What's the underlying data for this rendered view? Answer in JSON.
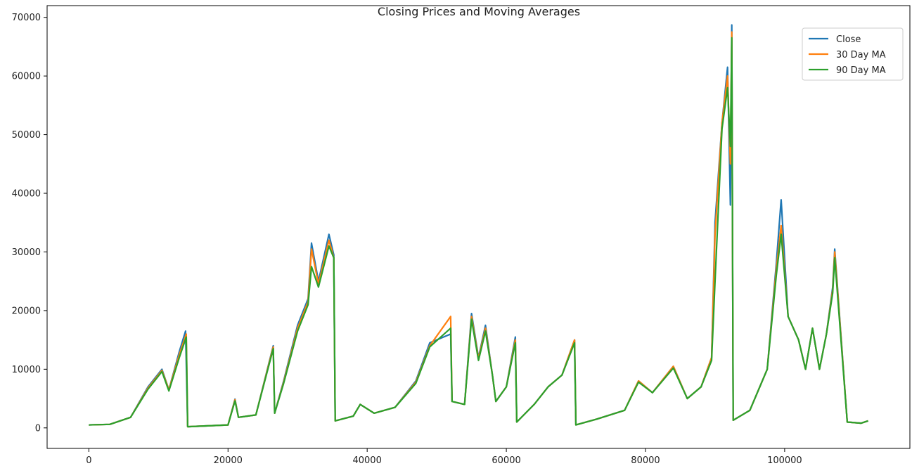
{
  "chart_data": {
    "type": "line",
    "title": "Closing Prices and Moving Averages",
    "xlabel": "",
    "ylabel": "",
    "xlim": [
      -6000,
      118000
    ],
    "ylim": [
      -3500,
      72000
    ],
    "x_ticks": [
      0,
      20000,
      40000,
      60000,
      80000,
      100000
    ],
    "y_ticks": [
      0,
      10000,
      20000,
      30000,
      40000,
      50000,
      60000,
      70000
    ],
    "grid": false,
    "legend_position": "top-right",
    "series": [
      {
        "name": "Close",
        "color": "#1f77b4",
        "x": [
          0,
          3000,
          6000,
          8500,
          10500,
          11500,
          13000,
          13900,
          14200,
          20000,
          21000,
          21500,
          24000,
          26500,
          26700,
          28000,
          30000,
          31500,
          32000,
          33000,
          34500,
          35200,
          35400,
          38000,
          39000,
          41000,
          44000,
          47000,
          49000,
          52000,
          52200,
          54000,
          55000,
          56000,
          57000,
          58000,
          58500,
          60000,
          61300,
          61500,
          64000,
          66000,
          68000,
          69800,
          70000,
          73000,
          77000,
          79000,
          81000,
          84000,
          86000,
          88000,
          89500,
          90000,
          91000,
          91800,
          92200,
          92400,
          92600,
          95000,
          97500,
          98800,
          99500,
          100500,
          102000,
          103000,
          104000,
          105000,
          106000,
          106900,
          107200,
          109000,
          111000,
          112000
        ],
        "y": [
          500,
          600,
          1800,
          7000,
          10000,
          6500,
          13000,
          16500,
          200,
          500,
          4900,
          1800,
          2200,
          14000,
          2500,
          8000,
          17500,
          22000,
          31500,
          25000,
          33000,
          29500,
          1200,
          2000,
          4000,
          2500,
          3500,
          8000,
          14500,
          16000,
          4500,
          4000,
          19500,
          12000,
          17500,
          9000,
          4500,
          7000,
          15500,
          1000,
          4000,
          7000,
          9000,
          15000,
          500,
          1500,
          3000,
          8000,
          6000,
          10500,
          5000,
          7000,
          12000,
          35000,
          52000,
          61500,
          38000,
          68700,
          1300,
          3000,
          10000,
          28000,
          38900,
          19000,
          15000,
          10000,
          17000,
          10000,
          16000,
          24000,
          30500,
          1000,
          800,
          1200
        ]
      },
      {
        "name": "30 Day MA",
        "color": "#ff7f0e",
        "x": [
          0,
          3000,
          6000,
          8500,
          10500,
          11500,
          13000,
          14000,
          14200,
          20000,
          21000,
          21500,
          24000,
          26500,
          26700,
          28000,
          30000,
          31500,
          32000,
          33000,
          34500,
          35200,
          35400,
          38000,
          39000,
          41000,
          44000,
          47000,
          49000,
          52000,
          52200,
          54000,
          55000,
          56000,
          57000,
          58000,
          58500,
          60000,
          61300,
          61500,
          64000,
          66000,
          68000,
          69800,
          70000,
          73000,
          77000,
          79000,
          81000,
          84000,
          86000,
          88000,
          89500,
          90000,
          91000,
          91800,
          92200,
          92400,
          92600,
          95000,
          97500,
          98800,
          99500,
          100500,
          102000,
          103000,
          104000,
          105000,
          106000,
          106900,
          107200,
          109000,
          111000,
          112000
        ],
        "y": [
          500,
          600,
          1800,
          6800,
          9800,
          6500,
          12500,
          16000,
          200,
          500,
          4800,
          1800,
          2200,
          13800,
          2500,
          7800,
          17000,
          21500,
          30500,
          24500,
          32000,
          29000,
          1200,
          2000,
          4000,
          2500,
          3500,
          7800,
          14000,
          19000,
          4500,
          4000,
          19000,
          11800,
          17000,
          9000,
          4500,
          7000,
          15000,
          1000,
          4000,
          7000,
          9000,
          15000,
          500,
          1500,
          3000,
          8000,
          6000,
          10500,
          5000,
          7000,
          12000,
          33000,
          52000,
          60000,
          45000,
          67500,
          1300,
          3000,
          10000,
          27000,
          34500,
          19000,
          15000,
          10000,
          17000,
          10000,
          16000,
          23500,
          30000,
          1000,
          800,
          1200
        ]
      },
      {
        "name": "90 Day MA",
        "color": "#2ca02c",
        "x": [
          0,
          3000,
          6000,
          8500,
          10500,
          11500,
          13000,
          14000,
          14200,
          20000,
          21000,
          21500,
          24000,
          26500,
          26700,
          28000,
          30000,
          31500,
          32000,
          33000,
          34500,
          35200,
          35400,
          38000,
          39000,
          41000,
          44000,
          47000,
          49000,
          52000,
          52200,
          54000,
          55000,
          56000,
          57000,
          58000,
          58500,
          60000,
          61300,
          61500,
          64000,
          66000,
          68000,
          69800,
          70000,
          73000,
          77000,
          79000,
          81000,
          84000,
          86000,
          88000,
          89500,
          90000,
          91000,
          91800,
          92200,
          92400,
          92600,
          95000,
          97500,
          98800,
          99500,
          100500,
          102000,
          103000,
          104000,
          105000,
          106000,
          106900,
          107200,
          109000,
          111000,
          112000
        ],
        "y": [
          500,
          600,
          1800,
          6600,
          9600,
          6300,
          12000,
          15500,
          200,
          500,
          4600,
          1800,
          2200,
          13500,
          2500,
          7600,
          16500,
          21000,
          27500,
          24000,
          31000,
          29000,
          1200,
          2000,
          4000,
          2500,
          3500,
          7600,
          13800,
          17000,
          4500,
          4000,
          18500,
          11500,
          16500,
          9000,
          4500,
          7000,
          14500,
          1000,
          4000,
          7000,
          9000,
          14500,
          500,
          1500,
          3000,
          7800,
          6000,
          10200,
          5000,
          7000,
          11500,
          25000,
          51000,
          58000,
          48000,
          66500,
          1300,
          3000,
          10000,
          26000,
          33000,
          19000,
          15000,
          10000,
          17000,
          10000,
          16000,
          23000,
          29000,
          1000,
          800,
          1200
        ]
      }
    ]
  }
}
